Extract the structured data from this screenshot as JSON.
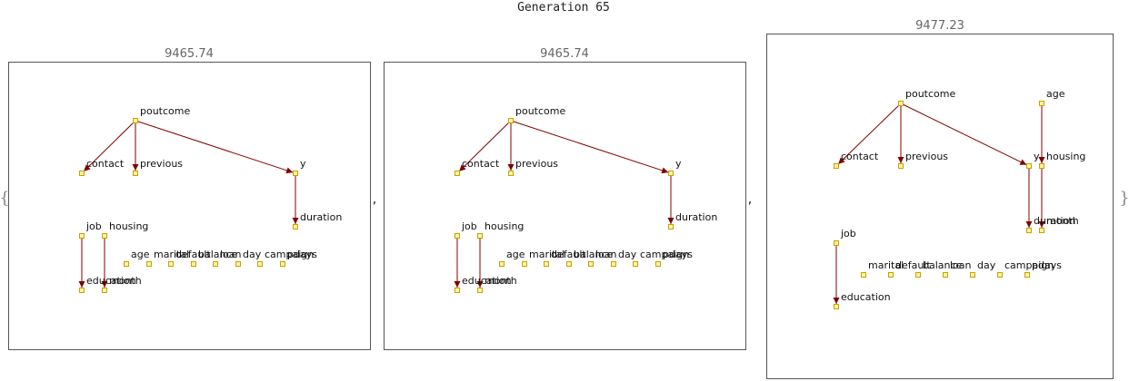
{
  "title": "Generation 65",
  "brace_open": "{",
  "brace_close": "}",
  "separator": ",",
  "colors": {
    "edge": "#800000",
    "node_fill": "#fff5a0",
    "node_stroke": "#c8a000",
    "frame": "#555555"
  },
  "panels": [
    {
      "score": "9465.74",
      "nodes": [
        "poutcome",
        "contact",
        "previous",
        "y",
        "duration",
        "job",
        "housing",
        "education",
        "month",
        "age",
        "marital",
        "default",
        "balance",
        "loan",
        "day",
        "campaign",
        "pdays"
      ],
      "edges": [
        [
          "poutcome",
          "contact"
        ],
        [
          "poutcome",
          "previous"
        ],
        [
          "poutcome",
          "y"
        ],
        [
          "y",
          "duration"
        ],
        [
          "job",
          "education"
        ],
        [
          "housing",
          "month"
        ]
      ]
    },
    {
      "score": "9465.74",
      "nodes": [
        "poutcome",
        "contact",
        "previous",
        "y",
        "duration",
        "job",
        "housing",
        "education",
        "month",
        "age",
        "marital",
        "default",
        "balance",
        "loan",
        "day",
        "campaign",
        "pdays"
      ],
      "edges": [
        [
          "poutcome",
          "contact"
        ],
        [
          "poutcome",
          "previous"
        ],
        [
          "poutcome",
          "y"
        ],
        [
          "y",
          "duration"
        ],
        [
          "job",
          "education"
        ],
        [
          "housing",
          "month"
        ]
      ]
    },
    {
      "score": "9477.23",
      "nodes": [
        "poutcome",
        "age",
        "contact",
        "previous",
        "y",
        "housing",
        "duration",
        "month",
        "job",
        "education",
        "marital",
        "default",
        "balance",
        "loan",
        "day",
        "campaign",
        "pdays"
      ],
      "edges": [
        [
          "poutcome",
          "contact"
        ],
        [
          "poutcome",
          "previous"
        ],
        [
          "poutcome",
          "y"
        ],
        [
          "y",
          "duration"
        ],
        [
          "age",
          "housing"
        ],
        [
          "housing",
          "month"
        ],
        [
          "job",
          "education"
        ]
      ]
    }
  ]
}
